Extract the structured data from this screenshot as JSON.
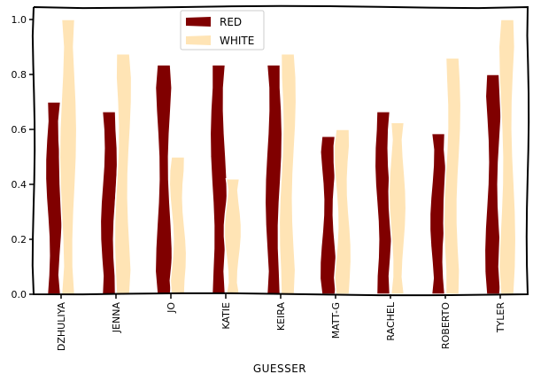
{
  "chart_data": {
    "type": "bar",
    "categories": [
      "DZHULIYA",
      "JENNA",
      "JO",
      "KATIE",
      "KEIRA",
      "MATT-G",
      "RACHEL",
      "ROBERTO",
      "TYLER"
    ],
    "series": [
      {
        "name": "RED",
        "values": [
          0.7,
          0.665,
          0.835,
          0.835,
          0.835,
          0.575,
          0.665,
          0.585,
          0.8
        ]
      },
      {
        "name": "WHITE",
        "values": [
          1.0,
          0.875,
          0.5,
          0.42,
          0.875,
          0.6,
          0.625,
          0.86,
          1.0
        ]
      }
    ],
    "xlabel": "GUESSER",
    "ylabel": "",
    "ylim": [
      0,
      1.0
    ],
    "yticks": [
      "0.0",
      "0.2",
      "0.4",
      "0.6",
      "0.8",
      "1.0"
    ],
    "legend": "top-left",
    "grid": false
  },
  "colors": {
    "RED": "#800000",
    "WHITE": "#ffe4b5"
  }
}
